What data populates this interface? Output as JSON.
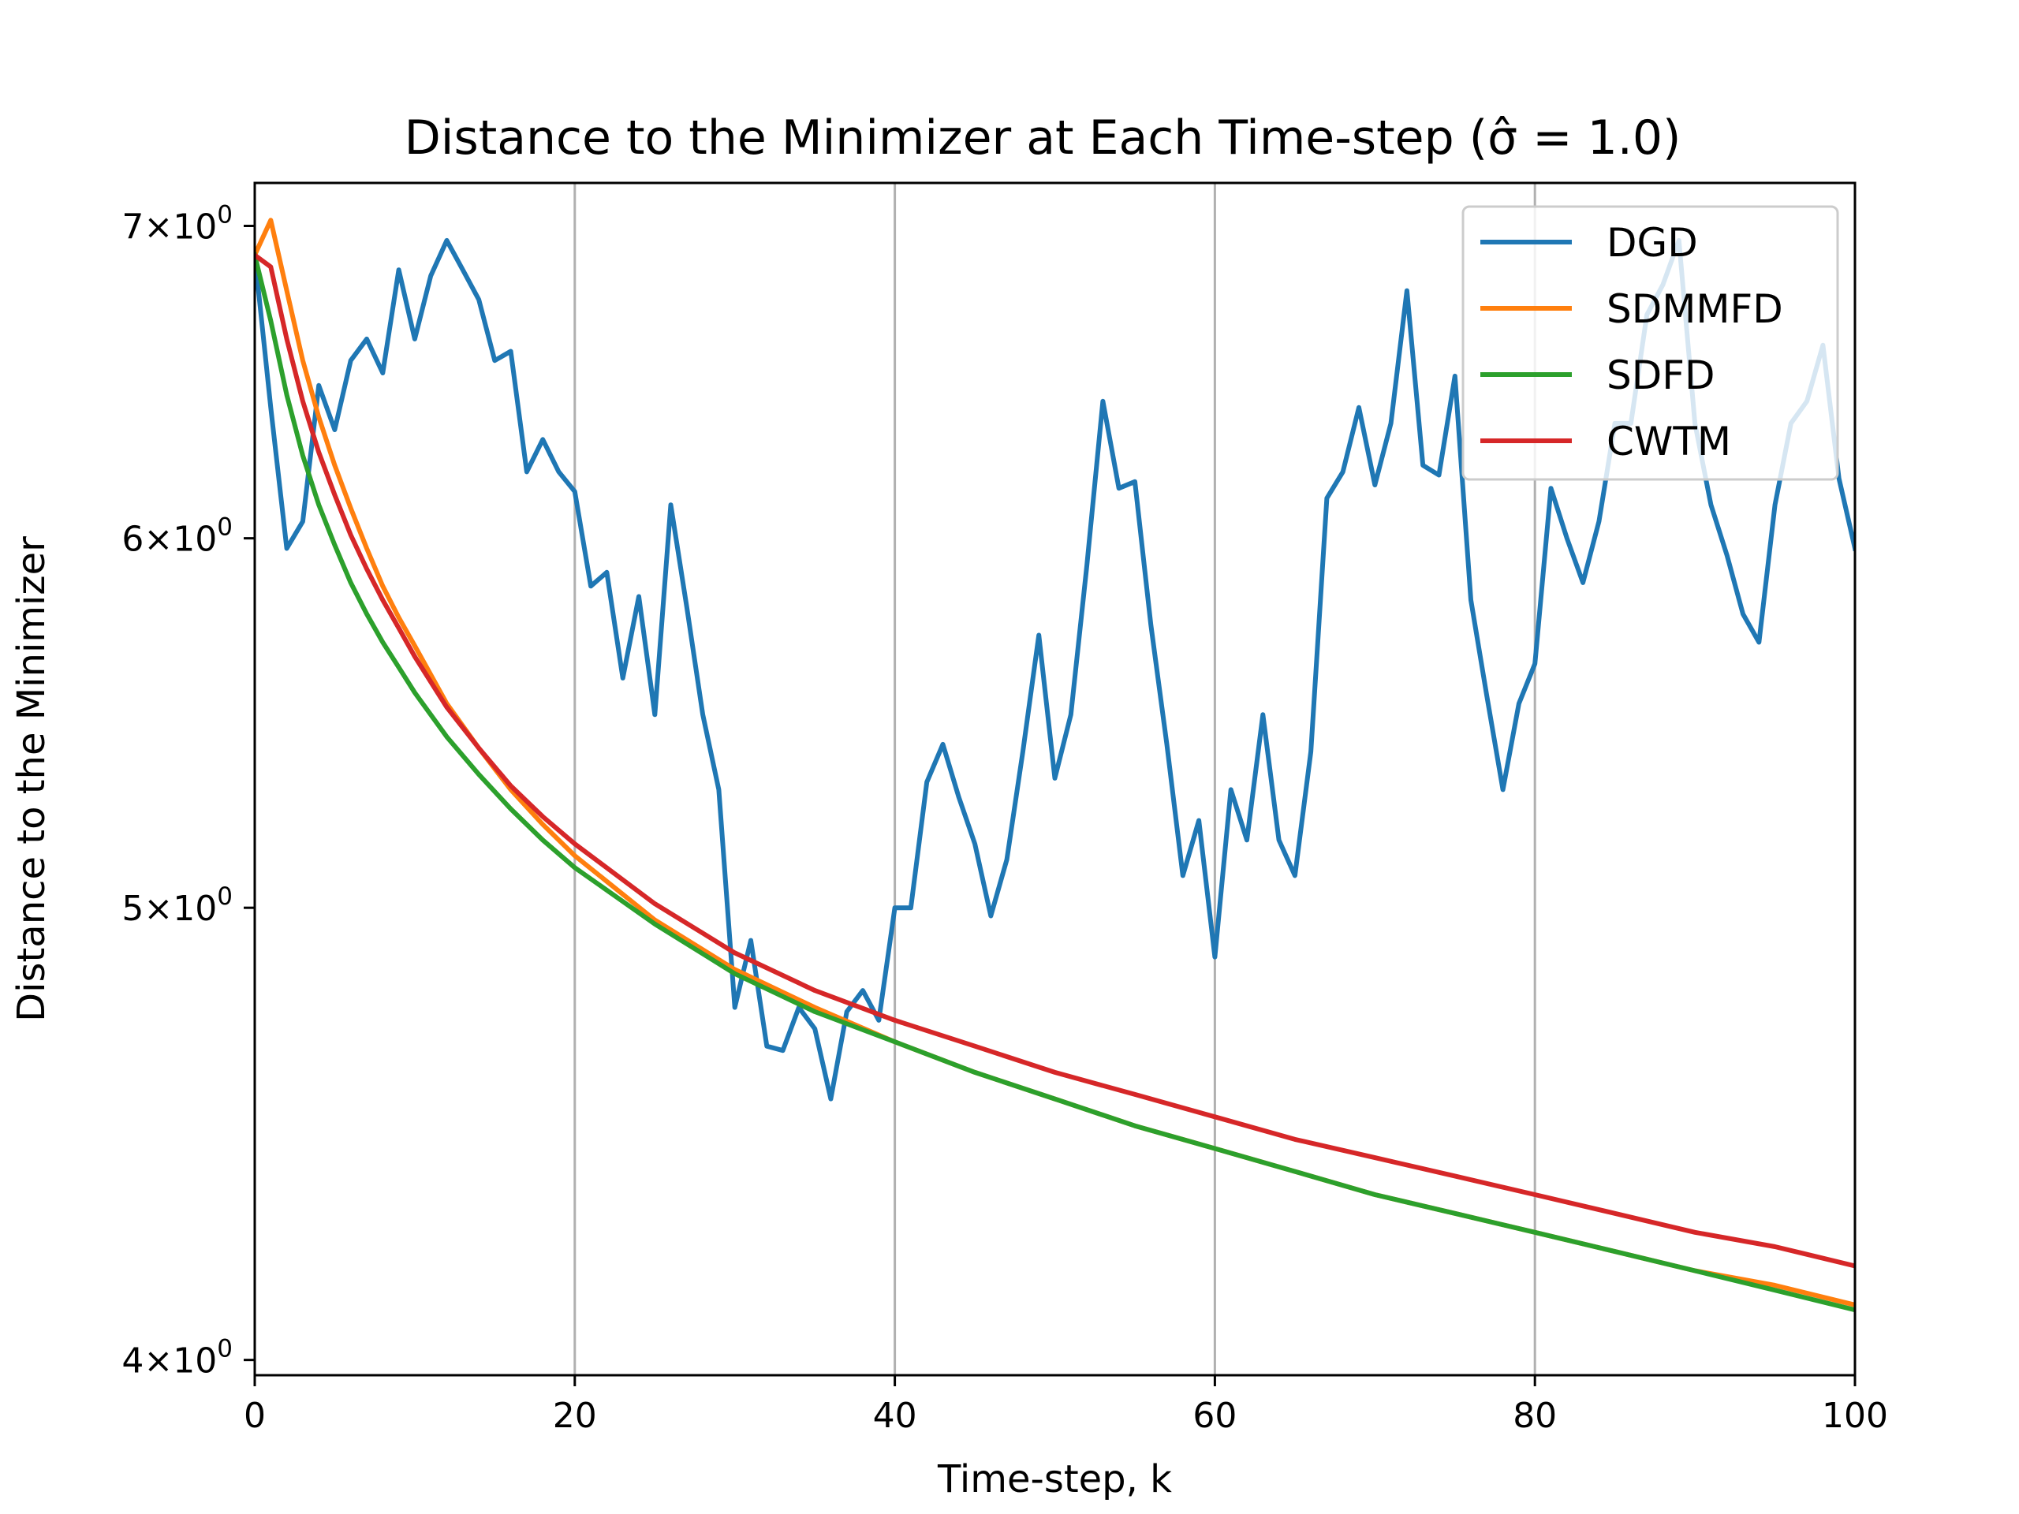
{
  "chart_data": {
    "type": "line",
    "title": "Distance to the Minimizer at Each Time-step (σ̂ = 1.0)",
    "xlabel": "Time-step, k",
    "ylabel": "Distance to the Minimizer",
    "xlim": [
      0,
      100
    ],
    "ylim": [
      3.97,
      7.15
    ],
    "yscale": "log",
    "grid": "vertical",
    "legend_position": "top-right",
    "x_ticks": [
      0,
      20,
      40,
      60,
      80,
      100
    ],
    "x_tick_labels": [
      "0",
      "20",
      "40",
      "60",
      "80",
      "100"
    ],
    "y_ticks": [
      {
        "value": 4,
        "coef": "4",
        "base": "10",
        "exp": "0"
      },
      {
        "value": 5,
        "coef": "5",
        "base": "10",
        "exp": "0"
      },
      {
        "value": 6,
        "coef": "6",
        "base": "10",
        "exp": "0"
      },
      {
        "value": 7,
        "coef": "7",
        "base": "10",
        "exp": "0"
      }
    ],
    "series": [
      {
        "name": "DGD",
        "color": "#1f77b4",
        "x": [
          0,
          1,
          2,
          3,
          4,
          5,
          6,
          7,
          8,
          9,
          10,
          11,
          12,
          13,
          14,
          15,
          16,
          17,
          18,
          19,
          20,
          21,
          22,
          23,
          24,
          25,
          26,
          27,
          28,
          29,
          30,
          31,
          32,
          33,
          34,
          35,
          36,
          37,
          38,
          39,
          40,
          41,
          42,
          43,
          44,
          45,
          46,
          47,
          48,
          49,
          50,
          51,
          52,
          53,
          54,
          55,
          56,
          57,
          58,
          59,
          60,
          61,
          62,
          63,
          64,
          65,
          66,
          67,
          68,
          69,
          70,
          71,
          72,
          73,
          74,
          75,
          76,
          77,
          78,
          79,
          80,
          81,
          82,
          83,
          84,
          85,
          86,
          87,
          88,
          89,
          90,
          91,
          92,
          93,
          94,
          95,
          96,
          97,
          98,
          99,
          100
        ],
        "values": [
          6.9,
          6.4,
          5.97,
          6.05,
          6.47,
          6.33,
          6.55,
          6.62,
          6.51,
          6.85,
          6.62,
          6.83,
          6.95,
          6.85,
          6.75,
          6.55,
          6.58,
          6.2,
          6.3,
          6.2,
          6.14,
          5.86,
          5.9,
          5.6,
          5.83,
          5.5,
          6.1,
          5.8,
          5.5,
          5.3,
          4.76,
          4.92,
          4.67,
          4.66,
          4.76,
          4.71,
          4.55,
          4.75,
          4.8,
          4.73,
          5.0,
          5.0,
          5.32,
          5.42,
          5.28,
          5.16,
          4.98,
          5.12,
          5.4,
          5.72,
          5.33,
          5.5,
          5.92,
          6.42,
          6.15,
          6.17,
          5.75,
          5.42,
          5.08,
          5.22,
          4.88,
          5.3,
          5.17,
          5.5,
          5.17,
          5.08,
          5.4,
          6.12,
          6.2,
          6.4,
          6.16,
          6.35,
          6.78,
          6.22,
          6.19,
          6.5,
          5.82,
          5.55,
          5.3,
          5.53,
          5.64,
          6.15,
          6.0,
          5.87,
          6.05,
          6.35,
          6.35,
          6.7,
          6.8,
          6.95,
          6.35,
          6.1,
          5.95,
          5.78,
          5.7,
          6.1,
          6.35,
          6.42,
          6.6,
          6.18,
          5.97
        ]
      },
      {
        "name": "SDMMFD",
        "color": "#ff7f0e",
        "x": [
          0,
          1,
          2,
          3,
          4,
          5,
          6,
          7,
          8,
          9,
          10,
          12,
          14,
          16,
          18,
          20,
          25,
          30,
          35,
          40,
          45,
          50,
          55,
          60,
          65,
          70,
          75,
          80,
          85,
          90,
          95,
          100
        ],
        "values": [
          6.9,
          7.02,
          6.78,
          6.55,
          6.37,
          6.22,
          6.09,
          5.97,
          5.86,
          5.77,
          5.69,
          5.53,
          5.41,
          5.3,
          5.21,
          5.13,
          4.97,
          4.85,
          4.76,
          4.68,
          4.61,
          4.55,
          4.49,
          4.44,
          4.39,
          4.34,
          4.3,
          4.26,
          4.22,
          4.18,
          4.15,
          4.11
        ]
      },
      {
        "name": "SDFD",
        "color": "#2ca02c",
        "x": [
          0,
          1,
          2,
          3,
          4,
          5,
          6,
          7,
          8,
          9,
          10,
          12,
          14,
          16,
          18,
          20,
          25,
          30,
          35,
          40,
          45,
          50,
          55,
          60,
          65,
          70,
          75,
          80,
          85,
          90,
          95,
          100
        ],
        "values": [
          6.9,
          6.68,
          6.44,
          6.25,
          6.1,
          5.98,
          5.87,
          5.78,
          5.7,
          5.63,
          5.56,
          5.44,
          5.34,
          5.25,
          5.17,
          5.1,
          4.96,
          4.84,
          4.75,
          4.68,
          4.61,
          4.55,
          4.49,
          4.44,
          4.39,
          4.34,
          4.3,
          4.26,
          4.22,
          4.18,
          4.14,
          4.1
        ]
      },
      {
        "name": "CWTM",
        "color": "#d62728",
        "x": [
          0,
          1,
          2,
          3,
          4,
          5,
          6,
          7,
          8,
          9,
          10,
          12,
          14,
          16,
          18,
          20,
          25,
          30,
          35,
          40,
          45,
          50,
          55,
          60,
          65,
          70,
          75,
          80,
          85,
          90,
          95,
          100
        ],
        "values": [
          6.9,
          6.86,
          6.62,
          6.42,
          6.26,
          6.13,
          6.01,
          5.91,
          5.82,
          5.74,
          5.66,
          5.52,
          5.41,
          5.31,
          5.23,
          5.16,
          5.01,
          4.89,
          4.8,
          4.73,
          4.67,
          4.61,
          4.56,
          4.51,
          4.46,
          4.42,
          4.38,
          4.34,
          4.3,
          4.26,
          4.23,
          4.19
        ]
      }
    ]
  }
}
